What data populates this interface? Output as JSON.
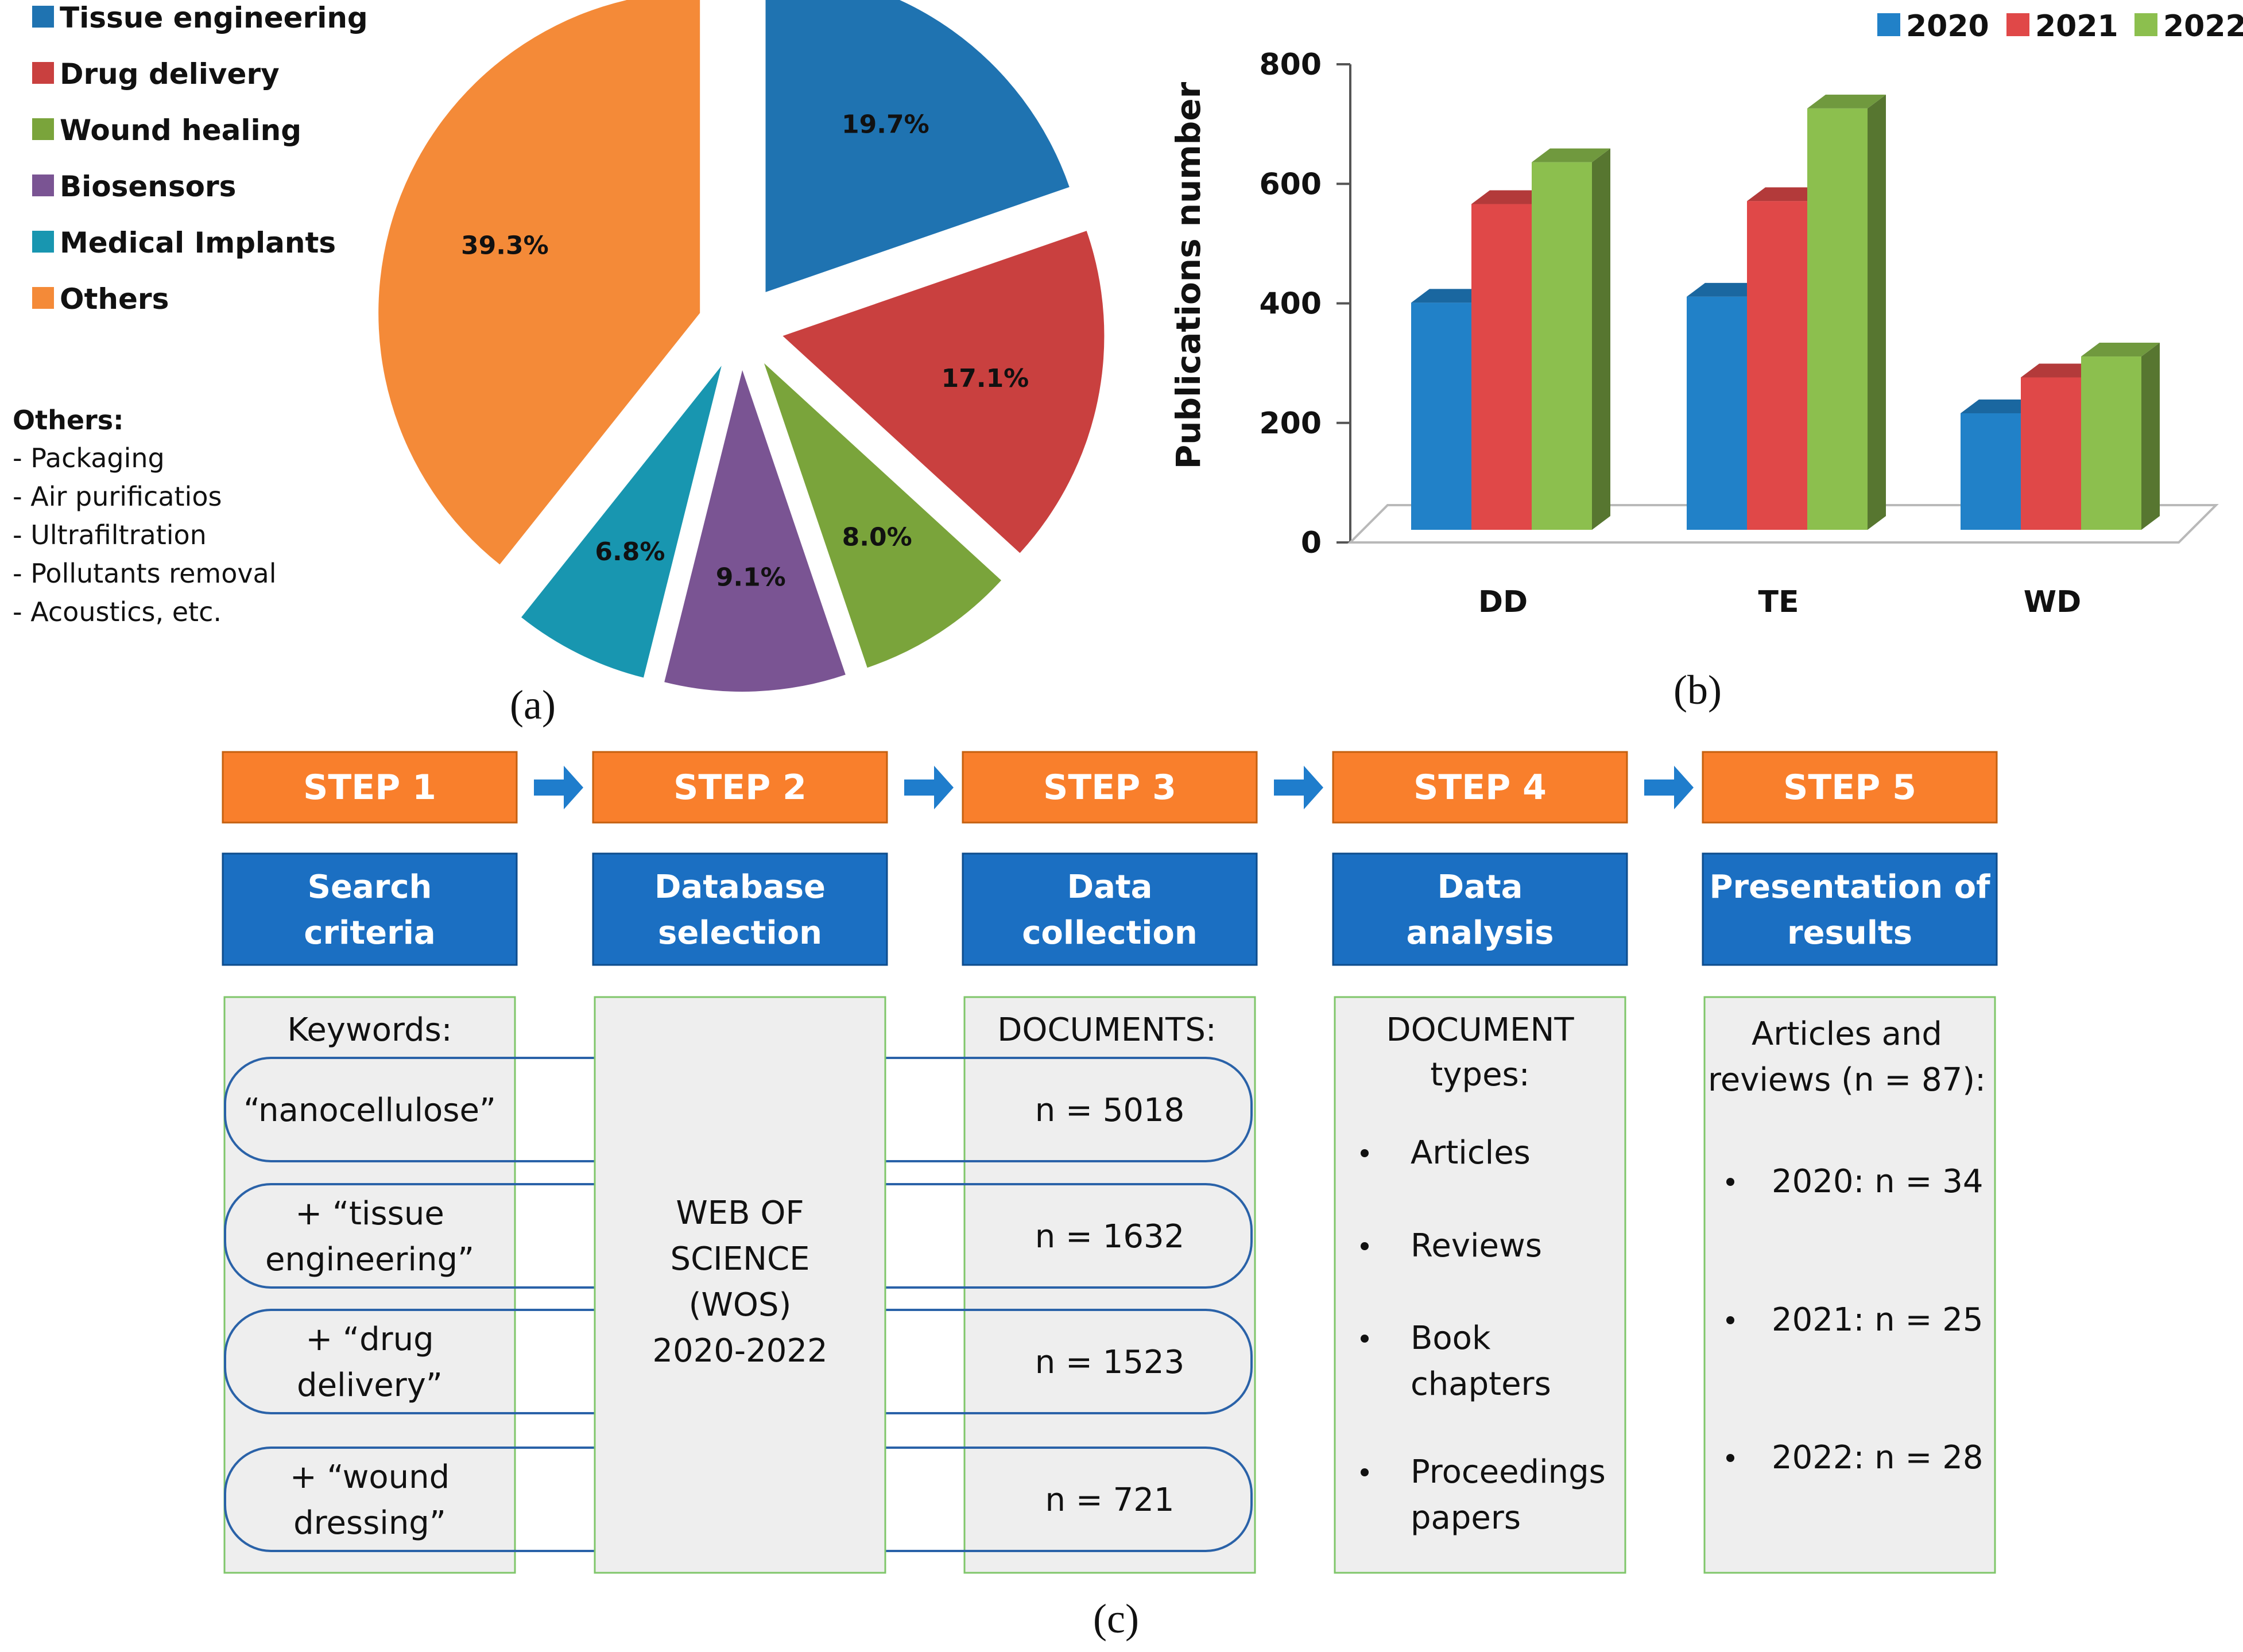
{
  "chart_data": [
    {
      "id": "a",
      "type": "pie",
      "panel_label": "(a)",
      "slices": [
        {
          "label": "Tissue engineering",
          "value": 19.7,
          "value_label": "19.7%",
          "color": "#1f73b1"
        },
        {
          "label": "Drug delivery",
          "value": 17.1,
          "value_label": "17.1%",
          "color": "#c9403f"
        },
        {
          "label": "Wound healing",
          "value": 8.0,
          "value_label": "8.0%",
          "color": "#7aa43b"
        },
        {
          "label": "Biosensors",
          "value": 9.1,
          "value_label": "9.1%",
          "color": "#7a5493"
        },
        {
          "label": "Medical Implants",
          "value": 6.8,
          "value_label": "6.8%",
          "color": "#1896b0"
        },
        {
          "label": "Others",
          "value": 39.3,
          "value_label": "39.3%",
          "color": "#f48a38"
        }
      ],
      "legend_placement": "top-left",
      "note": {
        "title": "Others:",
        "items": [
          "- Packaging",
          "- Air purificatios",
          "- Ultrafiltration",
          "- Pollutants removal",
          "- Acoustics, etc."
        ]
      }
    },
    {
      "id": "b",
      "type": "bar",
      "panel_label": "(b)",
      "categories": [
        "DD",
        "TE",
        "WD"
      ],
      "series": [
        {
          "name": "2020",
          "values": [
            380,
            390,
            195
          ],
          "color": "#2181c8"
        },
        {
          "name": "2021",
          "values": [
            545,
            550,
            255
          ],
          "color": "#e04848"
        },
        {
          "name": "2022",
          "values": [
            615,
            705,
            290
          ],
          "color": "#8cbf4e"
        }
      ],
      "ylabel": "Publications number",
      "xlabel": "",
      "ylim": [
        0,
        800
      ],
      "yticks": [
        0,
        200,
        400,
        600,
        800
      ],
      "grid": false,
      "style": "3d",
      "legend_placement": "top-right"
    }
  ],
  "flow": {
    "panel_label": "(c)",
    "steps": [
      {
        "step": "STEP 1",
        "title": [
          "Search",
          "criteria"
        ]
      },
      {
        "step": "STEP 2",
        "title": [
          "Database",
          "selection"
        ]
      },
      {
        "step": "STEP 3",
        "title": [
          "Data",
          "collection"
        ]
      },
      {
        "step": "STEP 4",
        "title": [
          "Data",
          "analysis"
        ]
      },
      {
        "step": "STEP 5",
        "title": [
          "Presentation of",
          "results"
        ]
      }
    ],
    "keywords_header": "Keywords:",
    "keywords": [
      [
        "“nanocellulose”"
      ],
      [
        "+ “tissue",
        "engineering”"
      ],
      [
        "+ “drug",
        "delivery”"
      ],
      [
        "+ “wound",
        "dressing”"
      ]
    ],
    "database": [
      "WEB OF",
      "SCIENCE",
      "(WOS)",
      "2020-2022"
    ],
    "documents_header": "DOCUMENTS:",
    "documents": [
      "n = 5018",
      "n = 1632",
      "n = 1523",
      "n = 721"
    ],
    "analysis_header": [
      "DOCUMENT",
      "types:"
    ],
    "analysis_items": [
      [
        "Articles"
      ],
      [
        "Reviews"
      ],
      [
        "Book",
        "chapters"
      ],
      [
        "Proceedings",
        "papers"
      ]
    ],
    "results_header": [
      "Articles and",
      "reviews (n = 87):"
    ],
    "results_items": [
      "2020: n = 34",
      "2021: n = 25",
      "2022: n = 28"
    ],
    "colors": {
      "step": "#f97f2c",
      "title": "#1b6fc2",
      "arrow": "#1f7dcc",
      "box_fill": "#eeeeee",
      "box_border": "#7fc66a",
      "pill": "#2a62a8"
    }
  }
}
